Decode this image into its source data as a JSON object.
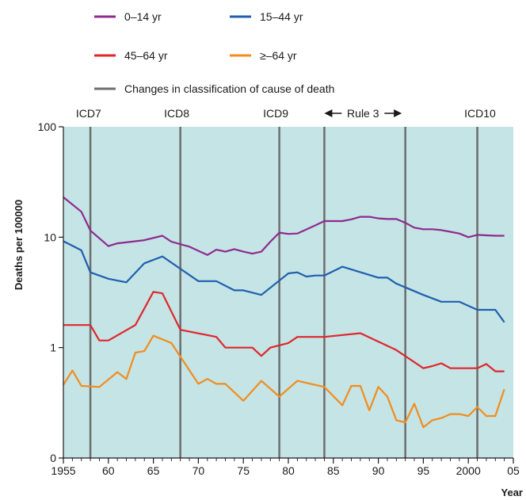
{
  "chart_data": {
    "type": "line",
    "title": "",
    "xlabel": "Year",
    "ylabel": "Deaths per 100000",
    "y_scale": "log",
    "xlim": [
      1955,
      2005
    ],
    "ylim": [
      0,
      100
    ],
    "x_ticks": [
      1955,
      1960,
      1965,
      1970,
      1975,
      1980,
      1985,
      1990,
      1995,
      2000,
      2005
    ],
    "x_tick_labels": [
      "1955",
      "60",
      "65",
      "70",
      "75",
      "80",
      "85",
      "90",
      "95",
      "2000",
      "05"
    ],
    "y_ticks": [
      0.1,
      1,
      10,
      100
    ],
    "y_tick_labels": [
      "0",
      "1",
      "10",
      "100"
    ],
    "plot_background": "#c4e4e6",
    "legend_position": "top-left",
    "series": [
      {
        "name": "0–14 yr",
        "color": "#8e2a8e",
        "x": [
          1955,
          1957,
          1958,
          1960,
          1961,
          1964,
          1966,
          1967,
          1969,
          1971,
          1972,
          1973,
          1974,
          1975,
          1976,
          1977,
          1978,
          1979,
          1980,
          1981,
          1983,
          1984,
          1986,
          1987,
          1988,
          1989,
          1990,
          1991,
          1992,
          1993,
          1994,
          1995,
          1996,
          1997,
          1998,
          1999,
          2000,
          2001,
          2002,
          2003,
          2004
        ],
        "y": [
          23,
          17,
          11.5,
          8.3,
          8.8,
          9.4,
          10.3,
          9.1,
          8.2,
          6.9,
          7.7,
          7.4,
          7.8,
          7.4,
          7.1,
          7.4,
          9.1,
          11,
          10.7,
          10.8,
          12.8,
          14,
          14,
          14.5,
          15.3,
          15.3,
          14.8,
          14.6,
          14.6,
          13.5,
          12.2,
          11.8,
          11.8,
          11.6,
          11.2,
          10.8,
          10,
          10.5,
          10.4,
          10.3,
          10.3
        ]
      },
      {
        "name": "15–44 yr",
        "color": "#1f5fad",
        "x": [
          1955,
          1957,
          1958,
          1960,
          1962,
          1964,
          1966,
          1970,
          1972,
          1974,
          1975,
          1977,
          1980,
          1981,
          1982,
          1983,
          1984,
          1986,
          1990,
          1991,
          1992,
          1995,
          1997,
          1998,
          1999,
          2001,
          2002,
          2003,
          2004
        ],
        "y": [
          9.2,
          7.6,
          4.8,
          4.2,
          3.9,
          5.8,
          6.7,
          4,
          4,
          3.3,
          3.3,
          3,
          4.7,
          4.8,
          4.4,
          4.5,
          4.5,
          5.4,
          4.3,
          4.3,
          3.8,
          3,
          2.6,
          2.6,
          2.6,
          2.2,
          2.2,
          2.2,
          1.7
        ]
      },
      {
        "name": "45–64 yr",
        "color": "#e0262a",
        "x": [
          1955,
          1958,
          1959,
          1960,
          1963,
          1965,
          1966,
          1968,
          1972,
          1973,
          1974,
          1976,
          1977,
          1978,
          1980,
          1981,
          1984,
          1988,
          1992,
          1995,
          1996,
          1997,
          1998,
          1999,
          2000,
          2001,
          2002,
          2003,
          2004
        ],
        "y": [
          1.6,
          1.6,
          1.16,
          1.16,
          1.6,
          3.2,
          3.1,
          1.45,
          1.25,
          1,
          1,
          1,
          0.84,
          1,
          1.1,
          1.25,
          1.25,
          1.35,
          0.95,
          0.65,
          0.68,
          0.72,
          0.65,
          0.65,
          0.65,
          0.65,
          0.71,
          0.61,
          0.61
        ]
      },
      {
        "name": "≥–64 yr",
        "color": "#f28c1c",
        "x": [
          1955,
          1956,
          1957,
          1959,
          1961,
          1962,
          1963,
          1964,
          1965,
          1967,
          1970,
          1971,
          1972,
          1973,
          1975,
          1977,
          1979,
          1981,
          1984,
          1986,
          1987,
          1988,
          1989,
          1990,
          1991,
          1992,
          1993,
          1994,
          1995,
          1996,
          1997,
          1998,
          1999,
          2000,
          2001,
          2002,
          2003,
          2004
        ],
        "y": [
          0.46,
          0.62,
          0.45,
          0.44,
          0.6,
          0.52,
          0.9,
          0.93,
          1.28,
          1.1,
          0.47,
          0.52,
          0.47,
          0.47,
          0.33,
          0.5,
          0.36,
          0.5,
          0.44,
          0.3,
          0.45,
          0.45,
          0.27,
          0.44,
          0.36,
          0.22,
          0.21,
          0.31,
          0.19,
          0.22,
          0.23,
          0.25,
          0.25,
          0.24,
          0.29,
          0.24,
          0.24,
          0.42
        ]
      }
    ],
    "classification_changes": {
      "legend_label": "Changes in classification of cause of death",
      "color": "#6e6e6e",
      "years": [
        1958,
        1968,
        1979,
        1984,
        1993,
        2001
      ],
      "labels": [
        {
          "text": "ICD7",
          "x": 1957.8
        },
        {
          "text": "ICD8",
          "x": 1967.6
        },
        {
          "text": "ICD9",
          "x": 1978.6
        },
        {
          "text": "ICD10",
          "x": 2001.3
        }
      ],
      "rule_label": {
        "text": "Rule 3",
        "from": 1984,
        "to": 1992.6
      }
    }
  }
}
